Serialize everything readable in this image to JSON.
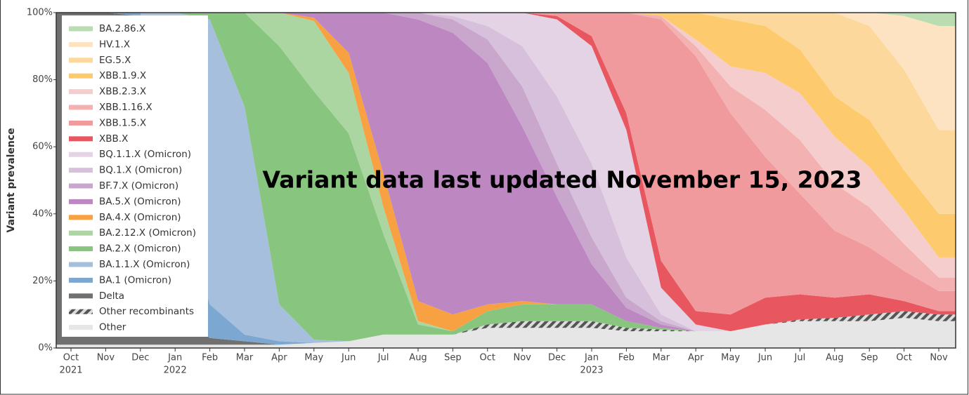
{
  "chart_data": {
    "type": "stacked_area",
    "annotation": "Variant data last updated November 15, 2023",
    "ylabel": "Variant prevalence",
    "x": [
      "2021-10",
      "2021-11",
      "2021-12",
      "2022-01",
      "2022-02",
      "2022-03",
      "2022-04",
      "2022-05",
      "2022-06",
      "2022-07",
      "2022-08",
      "2022-09",
      "2022-10",
      "2022-11",
      "2022-12",
      "2023-01",
      "2023-02",
      "2023-03",
      "2023-04",
      "2023-05",
      "2023-06",
      "2023-07",
      "2023-08",
      "2023-09",
      "2023-10",
      "2023-11"
    ],
    "xticks": [
      {
        "value": "2021-10",
        "label": "Oct"
      },
      {
        "value": "2021-11",
        "label": "Nov"
      },
      {
        "value": "2021-12",
        "label": "Dec"
      },
      {
        "value": "2022-01",
        "label": "Jan"
      },
      {
        "value": "2022-02",
        "label": "Feb"
      },
      {
        "value": "2022-03",
        "label": "Mar"
      },
      {
        "value": "2022-04",
        "label": "Apr"
      },
      {
        "value": "2022-05",
        "label": "May"
      },
      {
        "value": "2022-06",
        "label": "Jun"
      },
      {
        "value": "2022-07",
        "label": "Jul"
      },
      {
        "value": "2022-08",
        "label": "Aug"
      },
      {
        "value": "2022-09",
        "label": "Sep"
      },
      {
        "value": "2022-10",
        "label": "Oct"
      },
      {
        "value": "2022-11",
        "label": "Nov"
      },
      {
        "value": "2022-12",
        "label": "Dec"
      },
      {
        "value": "2023-01",
        "label": "Jan"
      },
      {
        "value": "2023-02",
        "label": "Feb"
      },
      {
        "value": "2023-03",
        "label": "Mar"
      },
      {
        "value": "2023-04",
        "label": "Apr"
      },
      {
        "value": "2023-05",
        "label": "May"
      },
      {
        "value": "2023-06",
        "label": "Jun"
      },
      {
        "value": "2023-07",
        "label": "Jul"
      },
      {
        "value": "2023-08",
        "label": "Aug"
      },
      {
        "value": "2023-09",
        "label": "Sep"
      },
      {
        "value": "2023-10",
        "label": "Oct"
      },
      {
        "value": "2023-11",
        "label": "Nov"
      }
    ],
    "xtick_years": [
      {
        "value": "2021-10",
        "label": "2021"
      },
      {
        "value": "2022-01",
        "label": "2022"
      },
      {
        "value": "2023-01",
        "label": "2023"
      }
    ],
    "ylim": [
      0,
      100
    ],
    "yticks": [
      {
        "value": 0,
        "label": "0%"
      },
      {
        "value": 20,
        "label": "20%"
      },
      {
        "value": 40,
        "label": "40%"
      },
      {
        "value": 60,
        "label": "60%"
      },
      {
        "value": 80,
        "label": "80%"
      },
      {
        "value": 100,
        "label": "100%"
      }
    ],
    "legend": "top-left",
    "series": [
      {
        "name": "Other",
        "color": "#e6e6e6",
        "values": [
          1,
          1,
          1,
          1,
          1,
          1,
          1,
          1.5,
          2,
          4,
          4,
          4,
          6,
          6,
          6,
          6,
          5,
          5,
          5,
          5,
          7,
          8,
          8,
          8,
          9,
          8
        ]
      },
      {
        "name": "Other recombinants",
        "color": "#666666",
        "hatched": true,
        "values": [
          0,
          0,
          0,
          0,
          0,
          0,
          0,
          0,
          0,
          0,
          0,
          0,
          1,
          2,
          2,
          2,
          1,
          0.5,
          0,
          0,
          0,
          0.5,
          1,
          2,
          2,
          2
        ]
      },
      {
        "name": "Delta",
        "color": "#707070",
        "values": [
          99,
          99,
          98,
          10,
          2,
          1,
          0,
          0,
          0,
          0,
          0,
          0,
          0,
          0,
          0,
          0,
          0,
          0,
          0,
          0,
          0,
          0,
          0,
          0,
          0,
          0
        ]
      },
      {
        "name": "BA.1 (Omicron)",
        "color": "#7ba7d1",
        "values": [
          0,
          0,
          1,
          40,
          10,
          2,
          1,
          0,
          0,
          0,
          0,
          0,
          0,
          0,
          0,
          0,
          0,
          0,
          0,
          0,
          0,
          0,
          0,
          0,
          0,
          0
        ]
      },
      {
        "name": "BA.1.1.X (Omicron)",
        "color": "#a5bfdc",
        "values": [
          0,
          0,
          0,
          49,
          85,
          68,
          11,
          1,
          0,
          0,
          0,
          0,
          0,
          0,
          0,
          0,
          0,
          0,
          0,
          0,
          0,
          0,
          0,
          0,
          0,
          0
        ]
      },
      {
        "name": "BA.2.X (Omicron)",
        "color": "#88c57f",
        "values": [
          0,
          0,
          0,
          0,
          2,
          28,
          77,
          74,
          62,
          30,
          3,
          1,
          4,
          5,
          5,
          5,
          2,
          0.5,
          0,
          0,
          0,
          0,
          0,
          0,
          0,
          0
        ]
      },
      {
        "name": "BA.2.12.X (Omicron)",
        "color": "#abd6a2",
        "values": [
          0,
          0,
          0,
          0,
          0,
          0,
          10,
          21,
          18,
          8,
          1,
          0,
          0,
          0,
          0,
          0,
          0,
          0,
          0,
          0,
          0,
          0,
          0,
          0,
          0,
          0
        ]
      },
      {
        "name": "BA.4.X (Omicron)",
        "color": "#f8a143",
        "values": [
          0,
          0,
          0,
          0,
          0,
          0,
          0,
          1,
          6,
          10,
          6,
          5,
          2,
          1,
          0,
          0,
          0,
          0,
          0,
          0,
          0,
          0,
          0,
          0,
          0,
          0
        ]
      },
      {
        "name": "BA.5.X (Omicron)",
        "color": "#bd87c1",
        "values": [
          0,
          0,
          0,
          0,
          0,
          0,
          0,
          1.5,
          12,
          48,
          84,
          84,
          72,
          52,
          32,
          12,
          4,
          1,
          0,
          0,
          0,
          0,
          0,
          0,
          0,
          0
        ]
      },
      {
        "name": "BF.7.X (Omicron)",
        "color": "#c9a7cd",
        "values": [
          0,
          0,
          0,
          0,
          0,
          0,
          0,
          0,
          0,
          0,
          2,
          4,
          7,
          12,
          10,
          8,
          3,
          1,
          0,
          0,
          0,
          0,
          0,
          0,
          0,
          0
        ]
      },
      {
        "name": "BQ.1.X (Omicron)",
        "color": "#d7c0dc",
        "values": [
          0,
          0,
          0,
          0,
          0,
          0,
          0,
          0,
          0,
          0,
          0,
          1,
          4,
          12,
          20,
          22,
          12,
          2,
          0,
          0,
          0,
          0,
          0,
          0,
          0,
          0
        ]
      },
      {
        "name": "BQ.1.1.X (Omicron)",
        "color": "#e3d3e5",
        "values": [
          0,
          0,
          0,
          0,
          0,
          0,
          0,
          0,
          0,
          0,
          0,
          1,
          4,
          10,
          23,
          35,
          38,
          8,
          2,
          0,
          0,
          0,
          0,
          0,
          0,
          0
        ]
      },
      {
        "name": "XBB.X",
        "color": "#e8575f",
        "values": [
          0,
          0,
          0,
          0,
          0,
          0,
          0,
          0,
          0,
          0,
          0,
          0,
          0,
          0,
          1,
          3,
          5,
          8,
          4,
          5,
          8,
          7.5,
          6,
          6,
          3,
          1
        ]
      },
      {
        "name": "XBB.1.5.X",
        "color": "#f09a9d",
        "values": [
          0,
          0,
          0,
          0,
          0,
          0,
          0,
          0,
          0,
          0,
          0,
          0,
          0,
          0,
          1,
          7,
          30,
          72,
          76,
          60,
          42,
          30,
          20,
          14,
          9,
          6
        ]
      },
      {
        "name": "XBB.1.16.X",
        "color": "#f3b1b1",
        "values": [
          0,
          0,
          0,
          0,
          0,
          0,
          0,
          0,
          0,
          0,
          0,
          0,
          0,
          0,
          0,
          0,
          0,
          1,
          3,
          8,
          14,
          16,
          14,
          12,
          8,
          4
        ]
      },
      {
        "name": "XBB.2.3.X",
        "color": "#f6cdcd",
        "values": [
          0,
          0,
          0,
          0,
          0,
          0,
          0,
          0,
          0,
          0,
          0,
          0,
          0,
          0,
          0,
          0,
          0,
          0,
          2,
          6,
          11,
          14,
          14,
          12,
          10,
          6
        ]
      },
      {
        "name": "XBB.1.9.X",
        "color": "#fdca6d",
        "values": [
          0,
          0,
          0,
          0,
          0,
          0,
          0,
          0,
          0,
          0,
          0,
          0,
          0,
          0,
          0,
          0,
          0,
          1,
          8,
          14,
          14,
          13,
          12,
          14,
          12,
          13
        ]
      },
      {
        "name": "EG.5.X",
        "color": "#fdd89c",
        "values": [
          0,
          0,
          0,
          0,
          0,
          0,
          0,
          0,
          0,
          0,
          0,
          0,
          0,
          0,
          0,
          0,
          0,
          0,
          0,
          2,
          4,
          11,
          25,
          28,
          30,
          25
        ]
      },
      {
        "name": "HV.1.X",
        "color": "#fde3c2",
        "values": [
          0,
          0,
          0,
          0,
          0,
          0,
          0,
          0,
          0,
          0,
          0,
          0,
          0,
          0,
          0,
          0,
          0,
          0,
          0,
          0,
          0,
          0,
          0,
          4,
          16,
          31
        ]
      },
      {
        "name": "BA.2.86.X",
        "color": "#b9ddb1",
        "values": [
          0,
          0,
          0,
          0,
          0,
          0,
          0,
          0,
          0,
          0,
          0,
          0,
          0,
          0,
          0,
          0,
          0,
          0,
          0,
          0,
          0,
          0,
          0,
          0,
          1,
          4
        ]
      }
    ]
  }
}
